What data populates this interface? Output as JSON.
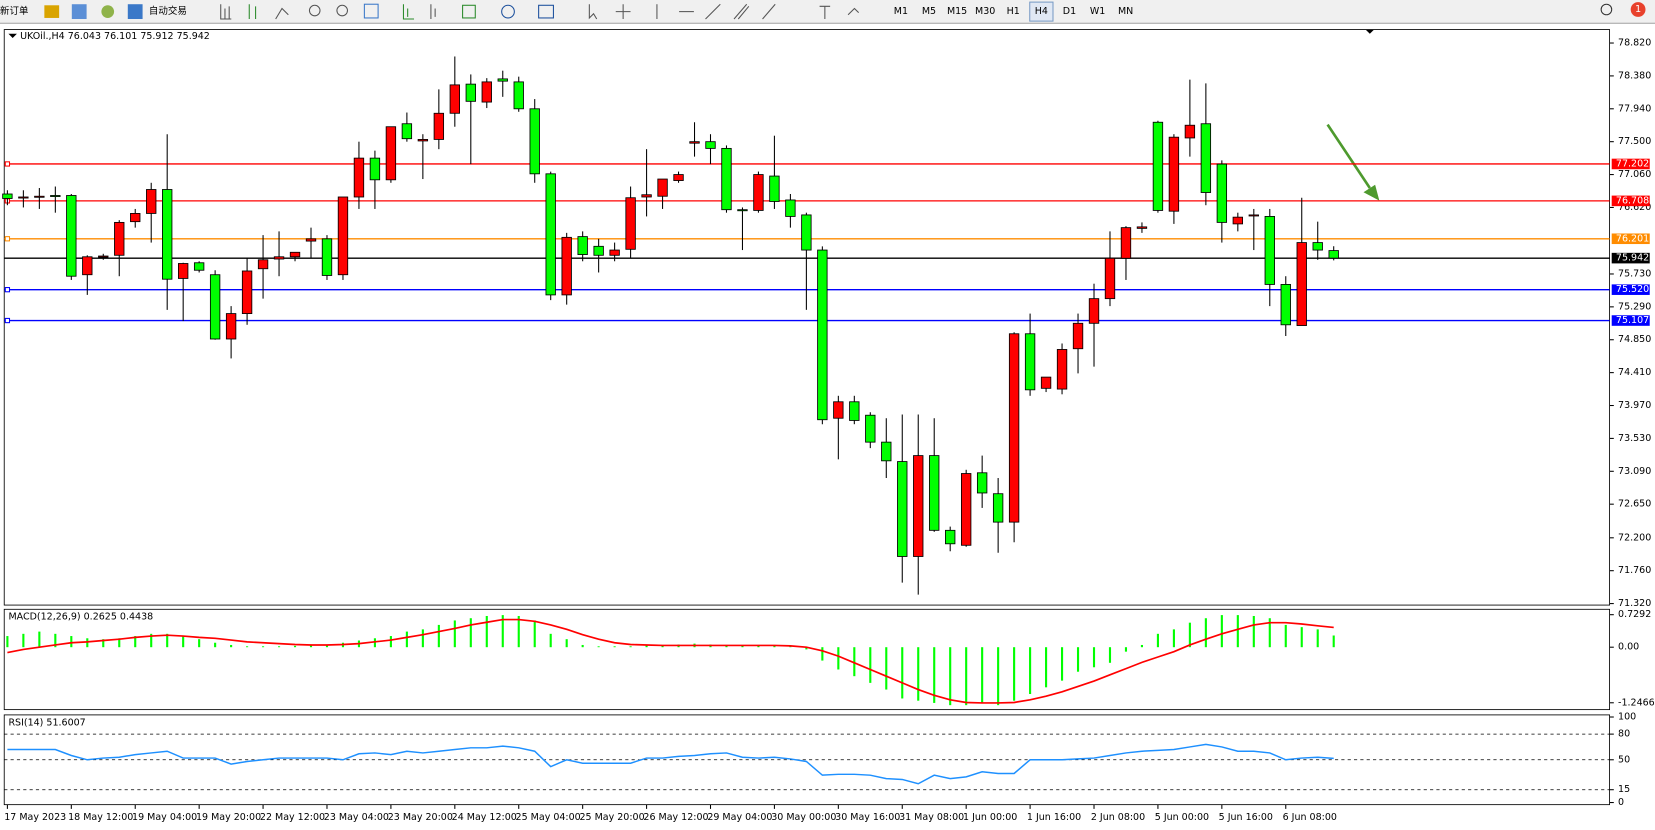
{
  "toolbar": {
    "new_order": "新订单",
    "auto_trading": "自动交易",
    "timeframes": [
      "M1",
      "M5",
      "M15",
      "M30",
      "H1",
      "H4",
      "D1",
      "W1",
      "MN"
    ],
    "active_timeframe": "H4",
    "notifications": 1
  },
  "chart_data": {
    "type": "candlestick",
    "symbol": "UKOil.,H4",
    "header": [
      76.043,
      76.101,
      75.912,
      75.942
    ],
    "categories": [
      "17 May 2023",
      null,
      null,
      null,
      "18 May 12:00",
      null,
      null,
      null,
      "19 May 04:00",
      null,
      null,
      null,
      "19 May 20:00",
      null,
      null,
      null,
      "22 May 12:00",
      null,
      null,
      null,
      "23 May 04:00",
      null,
      null,
      null,
      "23 May 20:00",
      null,
      null,
      null,
      "24 May 12:00",
      null,
      null,
      null,
      "25 May 04:00",
      null,
      null,
      null,
      "25 May 20:00",
      null,
      null,
      null,
      "26 May 12:00",
      null,
      null,
      null,
      "29 May 04:00",
      null,
      null,
      null,
      "30 May 00:00",
      null,
      null,
      null,
      "30 May 16:00",
      null,
      null,
      null,
      "31 May 08:00",
      null,
      null,
      null,
      "1 Jun 00:00",
      null,
      null,
      null,
      "1 Jun 16:00",
      null,
      null,
      null,
      "2 Jun 08:00",
      null,
      null,
      null,
      "5 Jun 00:00",
      null,
      null,
      null,
      "5 Jun 16:00",
      null,
      null,
      null,
      "6 Jun 08:00",
      null,
      null,
      null
    ],
    "open": [
      76.8,
      76.75,
      76.76,
      76.78,
      76.78,
      75.72,
      75.96,
      75.98,
      76.43,
      76.54,
      76.86,
      75.67,
      75.88,
      75.72,
      74.86,
      75.2,
      75.8,
      75.93,
      75.96,
      76.17,
      76.2,
      75.72,
      76.76,
      77.28,
      76.99,
      77.74,
      77.51,
      77.53,
      77.88,
      78.27,
      78.03,
      78.34,
      78.3,
      77.94,
      77.07,
      75.45,
      76.23,
      76.1,
      75.98,
      76.06,
      76.76,
      76.77,
      76.98,
      77.48,
      77.5,
      77.41,
      76.59,
      76.58,
      77.04,
      76.72,
      76.52,
      76.05,
      73.8,
      74.02,
      73.84,
      73.48,
      73.22,
      71.95,
      73.3,
      72.3,
      72.1,
      73.07,
      72.79,
      72.41,
      74.93,
      74.2,
      74.19,
      74.73,
      75.07,
      75.4,
      75.94,
      76.34,
      77.76,
      76.57,
      77.55,
      77.74,
      77.2,
      76.4,
      76.52,
      76.5,
      75.59,
      75.04,
      76.15,
      76.043
    ],
    "high": [
      76.85,
      76.85,
      76.88,
      76.9,
      76.8,
      75.98,
      76.0,
      76.45,
      76.6,
      76.95,
      77.6,
      75.88,
      75.9,
      75.78,
      75.3,
      75.95,
      76.25,
      76.3,
      76.0,
      76.35,
      76.25,
      76.76,
      77.5,
      77.38,
      77.7,
      77.89,
      77.6,
      78.2,
      78.64,
      78.4,
      78.35,
      78.45,
      78.37,
      78.07,
      77.1,
      76.28,
      76.3,
      76.2,
      76.15,
      76.9,
      77.4,
      77.0,
      77.1,
      77.76,
      77.6,
      77.45,
      76.62,
      77.1,
      77.58,
      76.8,
      76.55,
      76.1,
      74.1,
      74.1,
      73.88,
      73.8,
      73.85,
      73.85,
      73.8,
      72.35,
      73.11,
      73.3,
      73.0,
      74.95,
      75.2,
      74.35,
      74.8,
      75.2,
      75.6,
      76.3,
      76.37,
      76.42,
      77.78,
      77.6,
      78.33,
      78.28,
      77.25,
      76.55,
      76.6,
      76.6,
      75.7,
      76.75,
      76.43,
      76.101
    ],
    "low": [
      76.65,
      76.62,
      76.6,
      76.55,
      75.65,
      75.45,
      75.92,
      75.7,
      76.35,
      76.15,
      75.25,
      75.1,
      75.75,
      74.85,
      74.6,
      75.05,
      75.4,
      75.7,
      75.9,
      75.95,
      75.65,
      75.65,
      76.6,
      76.6,
      76.95,
      77.5,
      77.0,
      77.4,
      77.7,
      77.2,
      77.95,
      78.1,
      77.9,
      76.95,
      75.38,
      75.32,
      75.9,
      75.75,
      75.9,
      75.95,
      76.5,
      76.6,
      76.95,
      77.3,
      77.2,
      76.55,
      76.05,
      76.55,
      76.6,
      76.35,
      75.25,
      73.72,
      73.25,
      73.72,
      73.4,
      73.0,
      71.6,
      71.44,
      72.28,
      72.02,
      72.08,
      72.6,
      72.0,
      72.14,
      74.1,
      74.15,
      74.12,
      74.4,
      74.49,
      75.3,
      75.65,
      76.28,
      76.55,
      76.4,
      77.3,
      76.65,
      76.15,
      76.3,
      76.05,
      75.3,
      74.9,
      75.04,
      75.92,
      75.912
    ],
    "close": [
      76.74,
      76.76,
      76.77,
      76.77,
      75.7,
      75.96,
      75.97,
      76.42,
      76.54,
      76.86,
      75.66,
      75.87,
      75.78,
      74.86,
      75.2,
      75.77,
      75.92,
      75.96,
      76.02,
      76.2,
      75.71,
      76.76,
      77.28,
      76.99,
      77.7,
      77.54,
      77.53,
      77.88,
      78.26,
      78.04,
      78.3,
      78.31,
      77.94,
      77.07,
      75.45,
      76.22,
      75.99,
      75.98,
      76.05,
      76.75,
      76.79,
      77.0,
      77.06,
      77.5,
      77.41,
      76.59,
      76.58,
      77.06,
      76.7,
      76.5,
      76.05,
      73.78,
      74.02,
      73.77,
      73.48,
      73.23,
      71.95,
      73.3,
      72.3,
      72.12,
      73.06,
      72.8,
      72.41,
      74.93,
      74.18,
      74.35,
      74.72,
      75.07,
      75.4,
      75.94,
      76.35,
      76.36,
      76.58,
      77.56,
      77.72,
      76.82,
      76.42,
      76.49,
      76.52,
      75.59,
      75.05,
      76.15,
      76.05,
      75.942
    ],
    "up_color": "#ff0000",
    "down_color": "#00ff00",
    "ylim": [
      71.3,
      79.0
    ],
    "yticks": [
      {
        "value": 78.82,
        "label": "78.820"
      },
      {
        "value": 78.38,
        "label": "78.380"
      },
      {
        "value": 77.94,
        "label": "77.940"
      },
      {
        "value": 77.5,
        "label": "77.500"
      },
      {
        "value": 77.06,
        "label": "77.060"
      },
      {
        "value": 76.62,
        "label": "76.620"
      },
      {
        "value": 75.73,
        "label": "75.730"
      },
      {
        "value": 75.29,
        "label": "75.290"
      },
      {
        "value": 74.85,
        "label": "74.850"
      },
      {
        "value": 74.41,
        "label": "74.410"
      },
      {
        "value": 73.97,
        "label": "73.970"
      },
      {
        "value": 73.53,
        "label": "73.530"
      },
      {
        "value": 73.09,
        "label": "73.090"
      },
      {
        "value": 72.65,
        "label": "72.650"
      },
      {
        "value": 72.2,
        "label": "72.200"
      },
      {
        "value": 71.76,
        "label": "71.760"
      },
      {
        "value": 71.32,
        "label": "71.320"
      }
    ],
    "levels": [
      {
        "value": 77.202,
        "color": "#ff0000"
      },
      {
        "value": 76.708,
        "color": "#ff0000"
      },
      {
        "value": 76.201,
        "color": "#ff8c00"
      },
      {
        "value": 75.942,
        "color": "#000000"
      },
      {
        "value": 75.52,
        "label": "75.520",
        "color": "#0000ff"
      },
      {
        "value": 75.107,
        "color": "#0000ff"
      }
    ],
    "macd": {
      "title": "MACD(12,26,9)",
      "histogram_color": "#00ff00",
      "signal_color": "#ff0000",
      "histogram": [
        0.25,
        0.3,
        0.35,
        0.3,
        0.25,
        0.2,
        0.18,
        0.2,
        0.25,
        0.3,
        0.3,
        0.25,
        0.18,
        0.1,
        0.05,
        0.02,
        0.02,
        0.02,
        0.03,
        0.05,
        0.06,
        0.1,
        0.15,
        0.2,
        0.25,
        0.35,
        0.4,
        0.5,
        0.6,
        0.65,
        0.7,
        0.72,
        0.7,
        0.6,
        0.3,
        0.18,
        0.05,
        0.02,
        0.02,
        0.02,
        0.05,
        0.05,
        0.06,
        0.08,
        0.06,
        0.05,
        0.04,
        0.03,
        0.03,
        0.02,
        -0.05,
        -0.3,
        -0.5,
        -0.65,
        -0.8,
        -0.95,
        -1.15,
        -1.2,
        -1.25,
        -1.3,
        -1.3,
        -1.25,
        -1.3,
        -1.2,
        -1.05,
        -0.9,
        -0.75,
        -0.55,
        -0.45,
        -0.35,
        -0.1,
        0.05,
        0.3,
        0.4,
        0.55,
        0.65,
        0.72,
        0.72,
        0.7,
        0.65,
        0.5,
        0.45,
        0.4,
        0.2625
      ],
      "signal": [
        -0.12,
        -0.05,
        0.0,
        0.05,
        0.1,
        0.12,
        0.15,
        0.18,
        0.22,
        0.25,
        0.27,
        0.25,
        0.22,
        0.2,
        0.16,
        0.12,
        0.1,
        0.08,
        0.06,
        0.05,
        0.05,
        0.06,
        0.08,
        0.12,
        0.16,
        0.22,
        0.28,
        0.35,
        0.42,
        0.5,
        0.56,
        0.62,
        0.62,
        0.58,
        0.5,
        0.4,
        0.28,
        0.18,
        0.1,
        0.06,
        0.05,
        0.04,
        0.04,
        0.04,
        0.04,
        0.04,
        0.04,
        0.04,
        0.04,
        0.03,
        0.0,
        -0.08,
        -0.2,
        -0.35,
        -0.5,
        -0.65,
        -0.8,
        -0.95,
        -1.08,
        -1.18,
        -1.24,
        -1.25,
        -1.25,
        -1.24,
        -1.18,
        -1.1,
        -1.0,
        -0.88,
        -0.76,
        -0.62,
        -0.48,
        -0.34,
        -0.22,
        -0.1,
        0.05,
        0.18,
        0.3,
        0.4,
        0.5,
        0.55,
        0.55,
        0.52,
        0.48,
        0.4438
      ],
      "ylim": [
        -1.4,
        0.85
      ],
      "yticks": [
        0.7292,
        {
          "value": 0,
          "label": "0.00"
        },
        -1.2466
      ]
    },
    "rsi": {
      "title": "RSI(14)",
      "color": "#1e90ff",
      "ylim": [
        0,
        100
      ],
      "yticks": [
        100,
        80,
        50,
        15,
        0
      ],
      "values": [
        62,
        62,
        62,
        62,
        55,
        50,
        52,
        53,
        56,
        58,
        60,
        52,
        52,
        52,
        45,
        48,
        50,
        52,
        52,
        52,
        52,
        50,
        57,
        58,
        56,
        60,
        58,
        60,
        62,
        64,
        64,
        66,
        64,
        60,
        42,
        50,
        46,
        46,
        46,
        46,
        52,
        52,
        54,
        55,
        57,
        58,
        53,
        52,
        53,
        51,
        48,
        32,
        33,
        33,
        32,
        28,
        27,
        22,
        32,
        28,
        30,
        36,
        34,
        34,
        50,
        50,
        50,
        51,
        52,
        55,
        58,
        60,
        61,
        62,
        65,
        68,
        65,
        60,
        60,
        58,
        50,
        52,
        53,
        51.6007
      ]
    }
  }
}
